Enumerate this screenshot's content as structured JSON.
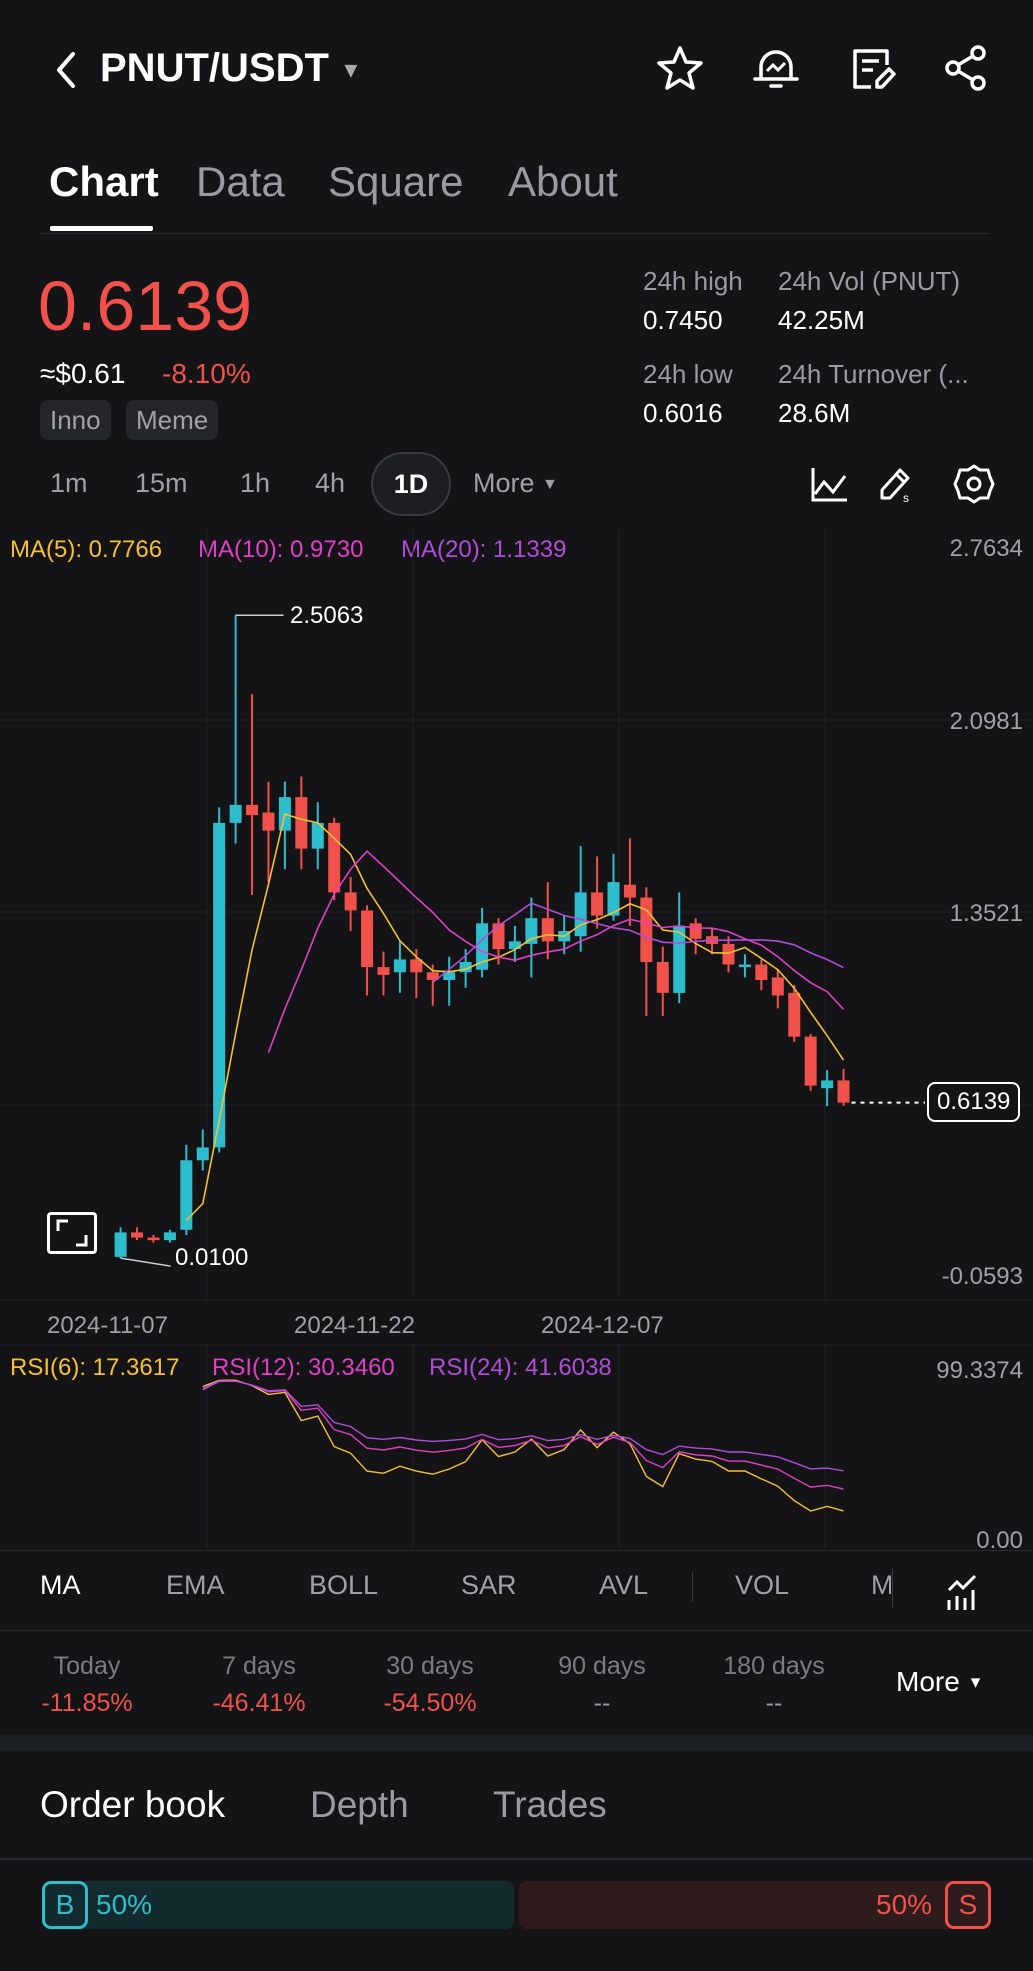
{
  "header": {
    "pair": "PNUT/USDT",
    "icons": [
      "back-icon",
      "star-icon",
      "price-alert-icon",
      "notes-icon",
      "share-icon"
    ]
  },
  "tabs": [
    {
      "label": "Chart",
      "active": true
    },
    {
      "label": "Data"
    },
    {
      "label": "Square"
    },
    {
      "label": "About"
    }
  ],
  "price": {
    "last": "0.6139",
    "usd": "≈$0.61",
    "change": "-8.10%",
    "tags": [
      "Inno",
      "Meme"
    ]
  },
  "stats": {
    "high_label": "24h high",
    "high": "0.7450",
    "vol_label": "24h Vol (PNUT)",
    "vol": "42.25M",
    "low_label": "24h low",
    "low": "0.6016",
    "turnover_label": "24h Turnover (...",
    "turnover": "28.6M"
  },
  "intervals": {
    "items": [
      "1m",
      "15m",
      "1h",
      "4h",
      "1D"
    ],
    "active": "1D",
    "more": "More"
  },
  "chart_data": {
    "type": "candlestick",
    "ma_legend": {
      "ma5": "MA(5): 0.7766",
      "ma10": "MA(10): 0.9730",
      "ma20": "MA(20): 1.1339"
    },
    "y_ticks": [
      "2.7634",
      "2.0981",
      "1.3521",
      "-0.0593"
    ],
    "ylim": [
      -0.0593,
      2.7634
    ],
    "x_ticks": [
      "2024-11-07",
      "2024-11-22",
      "2024-12-07"
    ],
    "start_date": "2024-11-07",
    "max_label": "2.5063",
    "min_label": "0.0100",
    "last_label": "0.6139",
    "ohlc": [
      [
        0.015,
        0.11,
        0.13,
        0.01
      ],
      [
        0.11,
        0.09,
        0.13,
        0.08
      ],
      [
        0.09,
        0.08,
        0.1,
        0.07
      ],
      [
        0.08,
        0.11,
        0.12,
        0.07
      ],
      [
        0.12,
        0.39,
        0.45,
        0.1
      ],
      [
        0.39,
        0.44,
        0.51,
        0.35
      ],
      [
        0.44,
        1.7,
        1.76,
        0.42
      ],
      [
        1.7,
        1.77,
        2.5063,
        1.62
      ],
      [
        1.77,
        1.73,
        2.2,
        1.42
      ],
      [
        1.74,
        1.67,
        1.86,
        1.47
      ],
      [
        1.67,
        1.8,
        1.86,
        1.52
      ],
      [
        1.8,
        1.6,
        1.88,
        1.52
      ],
      [
        1.6,
        1.7,
        1.78,
        1.52
      ],
      [
        1.7,
        1.43,
        1.72,
        1.4
      ],
      [
        1.43,
        1.36,
        1.49,
        1.28
      ],
      [
        1.36,
        1.14,
        1.38,
        1.03
      ],
      [
        1.14,
        1.11,
        1.2,
        1.03
      ],
      [
        1.12,
        1.17,
        1.24,
        1.04
      ],
      [
        1.17,
        1.12,
        1.21,
        1.02
      ],
      [
        1.12,
        1.09,
        1.15,
        0.99
      ],
      [
        1.09,
        1.12,
        1.18,
        0.99
      ],
      [
        1.12,
        1.16,
        1.21,
        1.06
      ],
      [
        1.13,
        1.31,
        1.37,
        1.1
      ],
      [
        1.31,
        1.21,
        1.33,
        1.15
      ],
      [
        1.21,
        1.24,
        1.3,
        1.16
      ],
      [
        1.23,
        1.33,
        1.41,
        1.1
      ],
      [
        1.33,
        1.24,
        1.47,
        1.17
      ],
      [
        1.24,
        1.28,
        1.34,
        1.19
      ],
      [
        1.26,
        1.43,
        1.61,
        1.2
      ],
      [
        1.43,
        1.34,
        1.57,
        1.29
      ],
      [
        1.34,
        1.47,
        1.58,
        1.32
      ],
      [
        1.46,
        1.41,
        1.64,
        1.3
      ],
      [
        1.41,
        1.16,
        1.45,
        0.95
      ],
      [
        1.16,
        1.04,
        1.22,
        0.95
      ],
      [
        1.04,
        1.3,
        1.43,
        1.0
      ],
      [
        1.31,
        1.25,
        1.33,
        1.19
      ],
      [
        1.26,
        1.23,
        1.29,
        1.19
      ],
      [
        1.23,
        1.15,
        1.26,
        1.12
      ],
      [
        1.14,
        1.15,
        1.19,
        1.1
      ],
      [
        1.15,
        1.09,
        1.17,
        1.05
      ],
      [
        1.1,
        1.03,
        1.13,
        0.98
      ],
      [
        1.04,
        0.87,
        1.07,
        0.85
      ],
      [
        0.87,
        0.68,
        0.88,
        0.66
      ],
      [
        0.67,
        0.7,
        0.74,
        0.6
      ],
      [
        0.7,
        0.6139,
        0.745,
        0.6016
      ]
    ],
    "colors": {
      "up": "#2ebdcc",
      "down": "#f0514b",
      "ma5": "#f5c033",
      "ma10": "#e040c8",
      "ma20": "#b04cd8"
    },
    "rsi": {
      "legend": {
        "rsi6": "RSI(6): 17.3617",
        "rsi12": "RSI(12): 30.3460",
        "rsi24": "RSI(24): 41.6038"
      },
      "ylim": [
        0,
        99.3374
      ],
      "y_ticks": [
        "99.3374",
        "0.00"
      ]
    }
  },
  "indicators": {
    "items": [
      "MA",
      "EMA",
      "BOLL",
      "SAR",
      "AVL",
      "VOL",
      "M"
    ],
    "active": "MA"
  },
  "changes": [
    {
      "label": "Today",
      "value": "-11.85%"
    },
    {
      "label": "7 days",
      "value": "-46.41%"
    },
    {
      "label": "30 days",
      "value": "-54.50%"
    },
    {
      "label": "90 days",
      "value": "--"
    },
    {
      "label": "180 days",
      "value": "--"
    }
  ],
  "changes_more": "More",
  "orderbook": {
    "tabs": [
      "Order book",
      "Depth",
      "Trades"
    ],
    "buy_badge": "B",
    "buy_pct": "50%",
    "sell_pct": "50%",
    "sell_badge": "S",
    "buy_ratio": 50
  }
}
